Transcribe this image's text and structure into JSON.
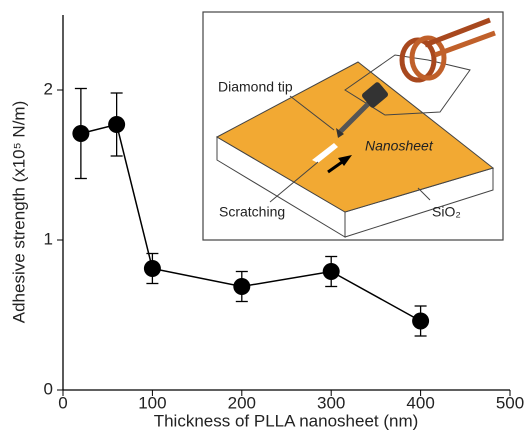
{
  "chart_data": {
    "type": "line",
    "xlabel": "Thickness of PLLA nanosheet (nm)",
    "ylabel": "Adhesive strength (x10⁵ N/m)",
    "x": [
      20,
      60,
      100,
      200,
      300,
      400
    ],
    "values": [
      1.71,
      1.77,
      0.81,
      0.69,
      0.79,
      0.46
    ],
    "errors": [
      0.3,
      0.21,
      0.1,
      0.1,
      0.1,
      0.1
    ],
    "color": "#000000",
    "xlim": [
      0,
      500
    ],
    "xticks": [
      0,
      100,
      200,
      300,
      400,
      500
    ],
    "ylim": [
      0,
      2.5
    ],
    "yticks": [
      0,
      1,
      2
    ],
    "grid": false
  },
  "inset": {
    "tip_label": "Diamond tip",
    "sheet_label": "Nanosheet",
    "scratch_label": "Scratching",
    "substrate_label": "SiO₂"
  }
}
